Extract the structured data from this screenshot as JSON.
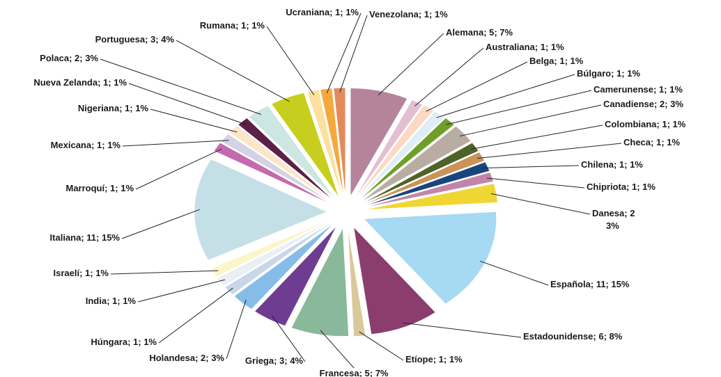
{
  "chart_data": {
    "type": "pie",
    "value_labels": [
      "Alemana; 5; 7%",
      "Australiana; 1; 1%",
      "Belga; 1; 1%",
      "Búlgaro; 1; 1%",
      "Camerunense; 1; 1%",
      "Canadiense; 2; 3%",
      "Colombiana; 1; 1%",
      "Checa; 1; 1%",
      "Chilena; 1; 1%",
      "Chipriota; 1; 1%",
      "Danesa; 2\n3%",
      "Española; 11; 15%",
      "Estadounidense; 6; 8%",
      "Etíope; 1; 1%",
      "Francesa; 5; 7%",
      "Griega; 3; 4%",
      "Holandesa; 2; 3%",
      "Húngara; 1; 1%",
      "India; 1; 1%",
      "Israelí; 1; 1%",
      "Italiana; 11; 15%",
      "Marroquí; 1; 1%",
      "Mexicana; 1; 1%",
      "Nigeriana; 1; 1%",
      "Nueva Zelanda; 1; 1%",
      "Polaca; 2; 3%",
      "Portuguesa; 3; 4%",
      "Rumana; 1; 1%",
      "Ucraniana; 1; 1%",
      "Venezolana; 1; 1%"
    ],
    "values": [
      5,
      1,
      1,
      1,
      1,
      2,
      1,
      1,
      1,
      1,
      2,
      11,
      6,
      1,
      5,
      3,
      2,
      1,
      1,
      1,
      11,
      1,
      1,
      1,
      1,
      2,
      3,
      1,
      1,
      1
    ],
    "colors": [
      "#b5849b",
      "#e3bfd0",
      "#fbd9c3",
      "#dfeef5",
      "#6f9f2a",
      "#b8aca3",
      "#4f6228",
      "#c9935a",
      "#17457e",
      "#c285a9",
      "#efd633",
      "#a6d9f2",
      "#8b3e6e",
      "#d9c89a",
      "#8ab89a",
      "#6e3d91",
      "#86bde8",
      "#c8d6ea",
      "#eaeff6",
      "#fbf6c8",
      "#c5dfe6",
      "#c46aaf",
      "#d3d2e6",
      "#fde6c8",
      "#5c1f47",
      "#cbe6e3",
      "#c6cf1d",
      "#fde0a0",
      "#f5a93c",
      "#e38a5c"
    ]
  }
}
